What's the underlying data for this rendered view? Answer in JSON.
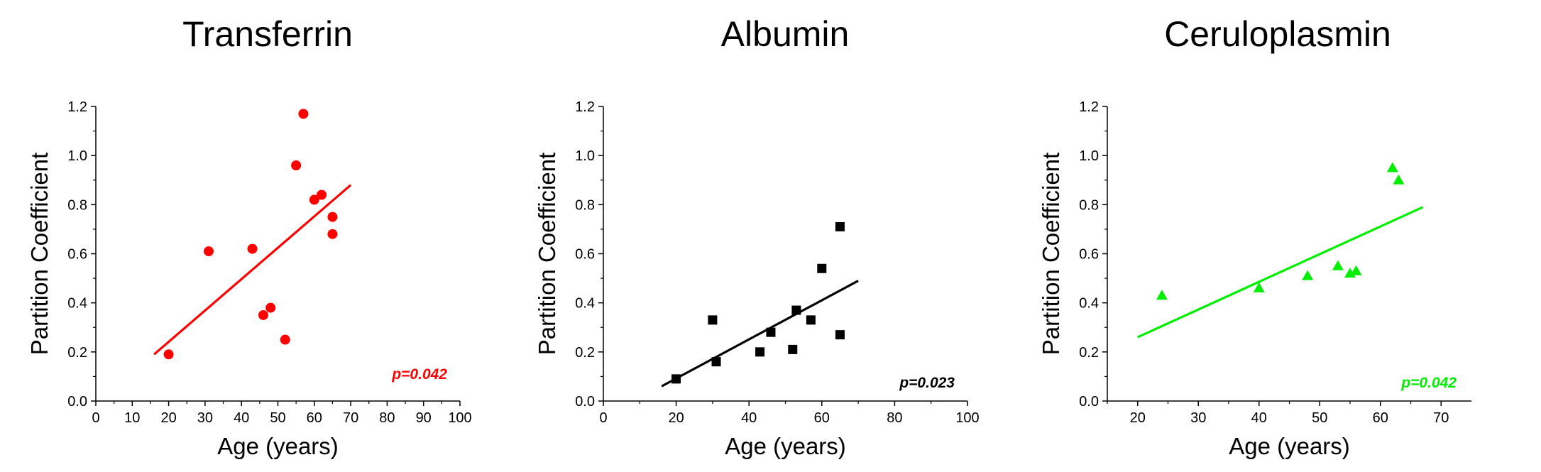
{
  "chart_data": [
    {
      "type": "scatter",
      "title": "Transferrin",
      "xlabel": "Age (years)",
      "ylabel": "Partition Coefficient",
      "xlim": [
        0,
        100
      ],
      "ylim": [
        0,
        1.2
      ],
      "xticks": [
        "0",
        "10",
        "20",
        "30",
        "40",
        "50",
        "60",
        "70",
        "80",
        "90",
        "100"
      ],
      "xtick_values": [
        0,
        10,
        20,
        30,
        40,
        50,
        60,
        70,
        80,
        90,
        100
      ],
      "yticks": [
        "0.0",
        "0.2",
        "0.4",
        "0.6",
        "0.8",
        "1.0",
        "1.2"
      ],
      "ytick_values": [
        0,
        0.2,
        0.4,
        0.6,
        0.8,
        1.0,
        1.2
      ],
      "marker": "circle",
      "color": "#ff0000",
      "points": [
        {
          "x": 20,
          "y": 0.19
        },
        {
          "x": 31,
          "y": 0.61
        },
        {
          "x": 43,
          "y": 0.62
        },
        {
          "x": 46,
          "y": 0.35
        },
        {
          "x": 48,
          "y": 0.38
        },
        {
          "x": 52,
          "y": 0.25
        },
        {
          "x": 55,
          "y": 0.96
        },
        {
          "x": 57,
          "y": 1.17
        },
        {
          "x": 60,
          "y": 0.82
        },
        {
          "x": 62,
          "y": 0.84
        },
        {
          "x": 65,
          "y": 0.75
        },
        {
          "x": 65,
          "y": 0.68
        }
      ],
      "fit": {
        "x": [
          16,
          70
        ],
        "y": [
          0.19,
          0.88
        ]
      },
      "annotation": "p=0.042"
    },
    {
      "type": "scatter",
      "title": "Albumin",
      "xlabel": "Age (years)",
      "ylabel": "Partition Coefficient",
      "xlim": [
        0,
        100
      ],
      "ylim": [
        0,
        1.2
      ],
      "xticks": [
        "0",
        "20",
        "40",
        "60",
        "80",
        "100"
      ],
      "xtick_values": [
        0,
        20,
        40,
        60,
        80,
        100
      ],
      "yticks": [
        "0.0",
        "0.2",
        "0.4",
        "0.6",
        "0.8",
        "1.0",
        "1.2"
      ],
      "ytick_values": [
        0,
        0.2,
        0.4,
        0.6,
        0.8,
        1.0,
        1.2
      ],
      "marker": "square",
      "color": "#000000",
      "points": [
        {
          "x": 20,
          "y": 0.09
        },
        {
          "x": 30,
          "y": 0.33
        },
        {
          "x": 31,
          "y": 0.16
        },
        {
          "x": 43,
          "y": 0.2
        },
        {
          "x": 46,
          "y": 0.28
        },
        {
          "x": 52,
          "y": 0.21
        },
        {
          "x": 53,
          "y": 0.37
        },
        {
          "x": 57,
          "y": 0.33
        },
        {
          "x": 60,
          "y": 0.54
        },
        {
          "x": 65,
          "y": 0.71
        },
        {
          "x": 65,
          "y": 0.27
        }
      ],
      "fit": {
        "x": [
          16,
          70
        ],
        "y": [
          0.06,
          0.49
        ]
      },
      "annotation": "p=0.023"
    },
    {
      "type": "scatter",
      "title": "Ceruloplasmin",
      "xlabel": "Age (years)",
      "ylabel": "Partition Coefficient",
      "xlim": [
        15,
        75
      ],
      "ylim": [
        0,
        1.2
      ],
      "xticks": [
        "20",
        "30",
        "40",
        "50",
        "60",
        "70"
      ],
      "xtick_values": [
        20,
        30,
        40,
        50,
        60,
        70
      ],
      "yticks": [
        "0.0",
        "0.2",
        "0.4",
        "0.6",
        "0.8",
        "1.0",
        "1.2"
      ],
      "ytick_values": [
        0,
        0.2,
        0.4,
        0.6,
        0.8,
        1.0,
        1.2
      ],
      "marker": "triangle",
      "color": "#00ee00",
      "points": [
        {
          "x": 24,
          "y": 0.43
        },
        {
          "x": 40,
          "y": 0.46
        },
        {
          "x": 48,
          "y": 0.51
        },
        {
          "x": 53,
          "y": 0.55
        },
        {
          "x": 55,
          "y": 0.52
        },
        {
          "x": 56,
          "y": 0.53
        },
        {
          "x": 62,
          "y": 0.95
        },
        {
          "x": 63,
          "y": 0.9
        }
      ],
      "fit": {
        "x": [
          20,
          67
        ],
        "y": [
          0.26,
          0.79
        ]
      },
      "annotation": "p=0.042"
    }
  ]
}
